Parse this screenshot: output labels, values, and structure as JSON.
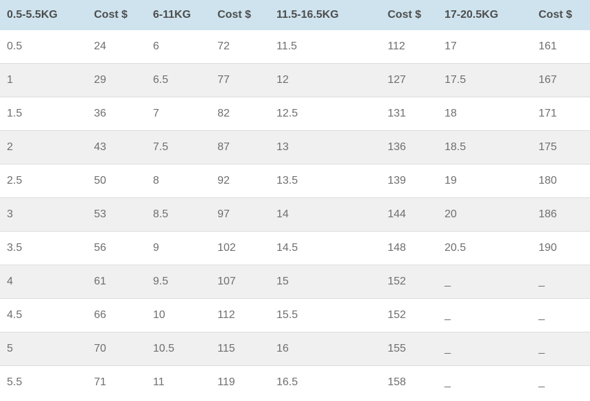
{
  "table": {
    "columns": [
      "0.5-5.5KG",
      "Cost $",
      "6-11KG",
      "Cost $",
      "11.5-16.5KG",
      "Cost $",
      "17-20.5KG",
      "Cost $"
    ],
    "rows": [
      [
        "0.5",
        "24",
        "6",
        "72",
        "11.5",
        "112",
        "17",
        "161"
      ],
      [
        "1",
        "29",
        "6.5",
        "77",
        "12",
        "127",
        "17.5",
        "167"
      ],
      [
        "1.5",
        "36",
        "7",
        "82",
        "12.5",
        "131",
        "18",
        "171"
      ],
      [
        "2",
        "43",
        "7.5",
        "87",
        "13",
        "136",
        "18.5",
        "175"
      ],
      [
        "2.5",
        "50",
        "8",
        "92",
        "13.5",
        "139",
        "19",
        "180"
      ],
      [
        "3",
        "53",
        "8.5",
        "97",
        "14",
        "144",
        "20",
        "186"
      ],
      [
        "3.5",
        "56",
        "9",
        "102",
        "14.5",
        "148",
        "20.5",
        "190"
      ],
      [
        "4",
        "61",
        "9.5",
        "107",
        "15",
        "152",
        "_",
        "_"
      ],
      [
        "4.5",
        "66",
        "10",
        "112",
        "15.5",
        "152",
        "_",
        "_"
      ],
      [
        "5",
        "70",
        "10.5",
        "115",
        "16",
        "155",
        "_",
        "_"
      ],
      [
        "5.5",
        "71",
        "11",
        "119",
        "16.5",
        "158",
        "_",
        "_"
      ]
    ]
  },
  "chart_data": {
    "type": "table",
    "columns": [
      "0.5-5.5KG",
      "Cost $",
      "6-11KG",
      "Cost $",
      "11.5-16.5KG",
      "Cost $",
      "17-20.5KG",
      "Cost $"
    ],
    "rows": [
      [
        "0.5",
        "24",
        "6",
        "72",
        "11.5",
        "112",
        "17",
        "161"
      ],
      [
        "1",
        "29",
        "6.5",
        "77",
        "12",
        "127",
        "17.5",
        "167"
      ],
      [
        "1.5",
        "36",
        "7",
        "82",
        "12.5",
        "131",
        "18",
        "171"
      ],
      [
        "2",
        "43",
        "7.5",
        "87",
        "13",
        "136",
        "18.5",
        "175"
      ],
      [
        "2.5",
        "50",
        "8",
        "92",
        "13.5",
        "139",
        "19",
        "180"
      ],
      [
        "3",
        "53",
        "8.5",
        "97",
        "14",
        "144",
        "20",
        "186"
      ],
      [
        "3.5",
        "56",
        "9",
        "102",
        "14.5",
        "148",
        "20.5",
        "190"
      ],
      [
        "4",
        "61",
        "9.5",
        "107",
        "15",
        "152",
        "_",
        "_"
      ],
      [
        "4.5",
        "66",
        "10",
        "112",
        "15.5",
        "152",
        "_",
        "_"
      ],
      [
        "5",
        "70",
        "10.5",
        "115",
        "16",
        "155",
        "_",
        "_"
      ],
      [
        "5.5",
        "71",
        "11",
        "119",
        "16.5",
        "158",
        "_",
        "_"
      ]
    ],
    "series": [
      {
        "name": "0.5-5.5KG",
        "weights_kg": [
          0.5,
          1,
          1.5,
          2,
          2.5,
          3,
          3.5,
          4,
          4.5,
          5,
          5.5
        ],
        "cost_usd": [
          24,
          29,
          36,
          43,
          50,
          53,
          56,
          61,
          66,
          70,
          71
        ]
      },
      {
        "name": "6-11KG",
        "weights_kg": [
          6,
          6.5,
          7,
          7.5,
          8,
          8.5,
          9,
          9.5,
          10,
          10.5,
          11
        ],
        "cost_usd": [
          72,
          77,
          82,
          87,
          92,
          97,
          102,
          107,
          112,
          115,
          119
        ]
      },
      {
        "name": "11.5-16.5KG",
        "weights_kg": [
          11.5,
          12,
          12.5,
          13,
          13.5,
          14,
          14.5,
          15,
          15.5,
          16,
          16.5
        ],
        "cost_usd": [
          112,
          127,
          131,
          136,
          139,
          144,
          148,
          152,
          152,
          155,
          158
        ]
      },
      {
        "name": "17-20.5KG",
        "weights_kg": [
          17,
          17.5,
          18,
          18.5,
          19,
          20,
          20.5
        ],
        "cost_usd": [
          161,
          167,
          171,
          175,
          180,
          186,
          190
        ]
      }
    ],
    "missing_value_placeholder": "_",
    "legend_position": "none",
    "grid": "horizontal-row-separators"
  },
  "colors": {
    "header_background": "#cee3ee",
    "header_text": "#4d4d4d",
    "cell_text": "#6e6e6e",
    "row_stripe": "#f0f0f0",
    "row_border": "#dcdcdc",
    "background": "#ffffff"
  }
}
